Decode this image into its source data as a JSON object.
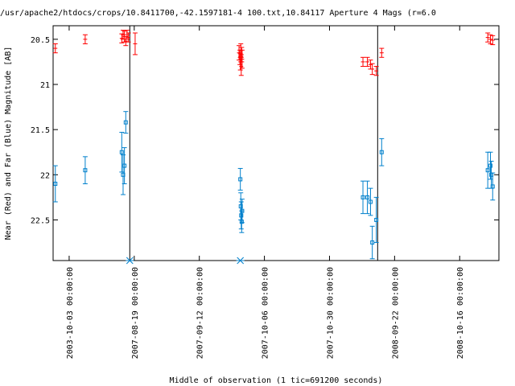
{
  "chart_data": {
    "type": "scatter",
    "title": "/usr/apache2/htdocs/crops/10.8411700,-42.1597181-4 100.txt,10.84117   Aperture 4 Mags (r=6.0",
    "xlabel": "Middle of observation (1 tic=691200 seconds)",
    "ylabel": "Near (Red) and Far (Blue) Magnitude [AB]",
    "ylim": [
      20.35,
      22.95
    ],
    "yticks": [
      20.5,
      21,
      21.5,
      22,
      22.5
    ],
    "ytick_labels": [
      "20.5",
      "21",
      "21.5",
      "22",
      "22.5"
    ],
    "x_axis": "observation index (broken time axis)",
    "xlim": [
      0,
      100
    ],
    "xticks": [
      {
        "x": 3.6,
        "label": "2003-10-03 00:00:00"
      },
      {
        "x": 18.2,
        "label": "2007-08-19 00:00:00"
      },
      {
        "x": 32.8,
        "label": "2007-09-12 00:00:00"
      },
      {
        "x": 47.4,
        "label": "2007-10-06 00:00:00"
      },
      {
        "x": 62.0,
        "label": "2007-10-30 00:00:00"
      },
      {
        "x": 76.6,
        "label": "2008-09-22 00:00:00"
      },
      {
        "x": 91.2,
        "label": "2008-10-16 00:00:00"
      }
    ],
    "breaks": [
      17.2,
      72.8
    ],
    "grid": false,
    "legend": "none",
    "series": [
      {
        "name": "Near (Red)",
        "color": "#ff0000",
        "marker": "plus",
        "points": [
          {
            "x": 0.5,
            "y": 20.6,
            "err": 0.05
          },
          {
            "x": 7.2,
            "y": 20.5,
            "err": 0.05
          },
          {
            "x": 15.4,
            "y": 20.49,
            "err": 0.05
          },
          {
            "x": 15.7,
            "y": 20.45,
            "err": 0.05
          },
          {
            "x": 16.0,
            "y": 20.47,
            "err": 0.06
          },
          {
            "x": 16.3,
            "y": 20.52,
            "err": 0.05
          },
          {
            "x": 16.6,
            "y": 20.45,
            "err": 0.05
          },
          {
            "x": 16.9,
            "y": 20.48,
            "err": 0.05
          },
          {
            "x": 18.4,
            "y": 20.55,
            "err": 0.12
          },
          {
            "x": 41.7,
            "y": 20.65,
            "err": 0.08
          },
          {
            "x": 41.9,
            "y": 20.7,
            "err": 0.08
          },
          {
            "x": 42.0,
            "y": 20.75,
            "err": 0.09
          },
          {
            "x": 42.1,
            "y": 20.62,
            "err": 0.07
          },
          {
            "x": 42.2,
            "y": 20.8,
            "err": 0.1
          },
          {
            "x": 42.3,
            "y": 20.67,
            "err": 0.08
          },
          {
            "x": 42.4,
            "y": 20.72,
            "err": 0.1
          },
          {
            "x": 69.5,
            "y": 20.75,
            "err": 0.05
          },
          {
            "x": 70.5,
            "y": 20.75,
            "err": 0.05
          },
          {
            "x": 71.2,
            "y": 20.78,
            "err": 0.05
          },
          {
            "x": 71.6,
            "y": 20.83,
            "err": 0.06
          },
          {
            "x": 72.5,
            "y": 20.85,
            "err": 0.05
          },
          {
            "x": 73.7,
            "y": 20.65,
            "err": 0.05
          },
          {
            "x": 97.5,
            "y": 20.48,
            "err": 0.05
          },
          {
            "x": 98.1,
            "y": 20.5,
            "err": 0.05
          },
          {
            "x": 98.6,
            "y": 20.51,
            "err": 0.05
          }
        ]
      },
      {
        "name": "Far (Blue)",
        "color": "#0080cc",
        "marker": "square",
        "points": [
          {
            "x": 0.5,
            "y": 22.1,
            "err": 0.2
          },
          {
            "x": 7.2,
            "y": 21.95,
            "err": 0.15
          },
          {
            "x": 15.4,
            "y": 21.75,
            "err": 0.22
          },
          {
            "x": 15.7,
            "y": 22.0,
            "err": 0.22
          },
          {
            "x": 16.0,
            "y": 21.9,
            "err": 0.2
          },
          {
            "x": 16.3,
            "y": 21.42,
            "err": 0.12
          },
          {
            "x": 42.0,
            "y": 22.05,
            "err": 0.12
          },
          {
            "x": 42.1,
            "y": 22.35,
            "err": 0.15
          },
          {
            "x": 42.2,
            "y": 22.45,
            "err": 0.15
          },
          {
            "x": 42.3,
            "y": 22.52,
            "err": 0.12
          },
          {
            "x": 42.4,
            "y": 22.4,
            "err": 0.13
          },
          {
            "x": 69.5,
            "y": 22.25,
            "err": 0.18
          },
          {
            "x": 70.5,
            "y": 22.25,
            "err": 0.18
          },
          {
            "x": 71.2,
            "y": 22.3,
            "err": 0.15
          },
          {
            "x": 71.6,
            "y": 22.75,
            "err": 0.18
          },
          {
            "x": 72.5,
            "y": 22.5,
            "err": 0.25
          },
          {
            "x": 73.7,
            "y": 21.75,
            "err": 0.15
          },
          {
            "x": 97.5,
            "y": 21.95,
            "err": 0.2
          },
          {
            "x": 98.1,
            "y": 21.9,
            "err": 0.15
          },
          {
            "x": 98.6,
            "y": 22.13,
            "err": 0.15
          },
          {
            "x": 98.3,
            "y": 22.0,
            "err": 0.15
          }
        ]
      }
    ],
    "markers": [
      {
        "x": 17.2,
        "y": 22.95,
        "color": "#0080cc"
      },
      {
        "x": 42.0,
        "y": 22.95,
        "color": "#0080cc"
      }
    ]
  }
}
